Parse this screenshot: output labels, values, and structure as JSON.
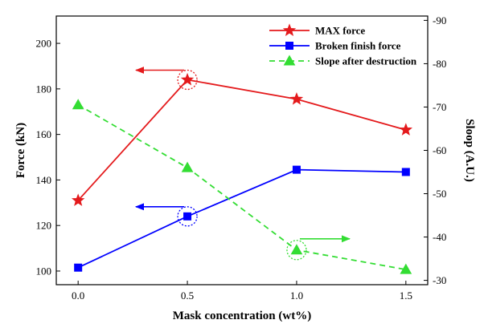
{
  "chart_data": {
    "type": "line",
    "x": [
      0.0,
      0.5,
      1.0,
      1.5
    ],
    "x_tick_labels": [
      "0.0",
      "0.5",
      "1.0",
      "1.5"
    ],
    "xlabel": "Mask concentration (wt%)",
    "xlim": [
      -0.1,
      1.6
    ],
    "ylabel_left": "Force (kN)",
    "ylim_left": [
      94,
      212
    ],
    "yticks_left": [
      100,
      120,
      140,
      160,
      180,
      200
    ],
    "ylabel_right": "Sloop (A.U.)",
    "ylim_right": [
      -29,
      -91
    ],
    "yticks_right": [
      -30,
      -40,
      -50,
      -60,
      -70,
      -80,
      -90
    ],
    "grid": false,
    "legend_position": "top-right",
    "series": [
      {
        "name": "MAX force",
        "axis": "left",
        "color": "#e41a1c",
        "marker": "star",
        "linestyle": "solid",
        "values": [
          131,
          184,
          175.5,
          162
        ]
      },
      {
        "name": "Broken finish force",
        "axis": "left",
        "color": "#0000ff",
        "marker": "square",
        "linestyle": "solid",
        "values": [
          101.5,
          124,
          144.5,
          143.5
        ]
      },
      {
        "name": "Slope after destruction",
        "axis": "right",
        "color": "#33dd33",
        "marker": "triangle",
        "linestyle": "dashed",
        "values": [
          -70.5,
          -56,
          -37,
          -32.5
        ]
      }
    ],
    "annotations": [
      {
        "series": 0,
        "point": 1,
        "arrow": "left"
      },
      {
        "series": 1,
        "point": 1,
        "arrow": "left"
      },
      {
        "series": 2,
        "point": 2,
        "arrow": "right"
      }
    ]
  }
}
